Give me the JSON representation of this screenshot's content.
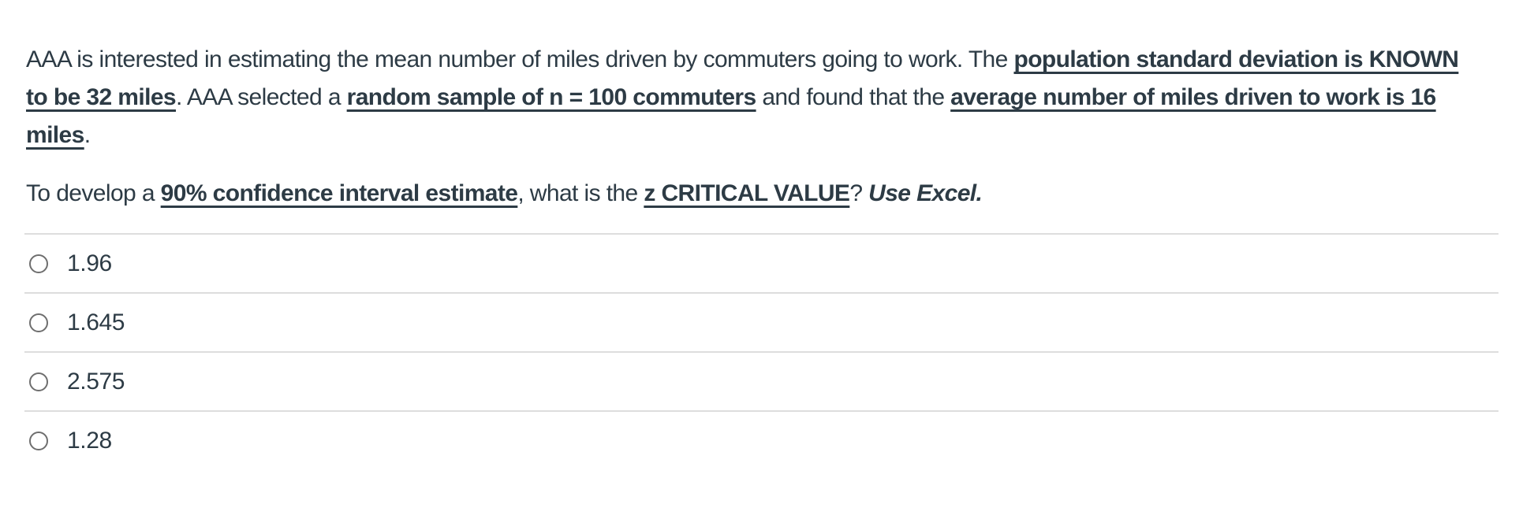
{
  "colors": {
    "text": "#2D3B45",
    "divider": "#DDDDDD",
    "radio_border": "#6E6E6E",
    "background": "#FFFFFF"
  },
  "question": {
    "paragraphs": [
      {
        "runs": [
          {
            "text": "AAA is interested in estimating the mean number of miles driven by commuters going to work. The ",
            "style": "normal"
          },
          {
            "text": "population standard deviation is KNOWN to be 32 miles",
            "style": "bold-underline"
          },
          {
            "text": ". AAA selected a ",
            "style": "normal"
          },
          {
            "text": "random sample of n = 100 commuters",
            "style": "bold-underline"
          },
          {
            "text": " and found that the ",
            "style": "normal"
          },
          {
            "text": "average number of miles driven to work is 16 miles",
            "style": "bold-underline"
          },
          {
            "text": ".",
            "style": "normal"
          }
        ]
      },
      {
        "runs": [
          {
            "text": "To develop a ",
            "style": "normal"
          },
          {
            "text": "90% confidence interval estimate",
            "style": "bold-underline"
          },
          {
            "text": ", what is the ",
            "style": "normal"
          },
          {
            "text": "z CRITICAL VALUE",
            "style": "bold-underline"
          },
          {
            "text": "? ",
            "style": "normal"
          },
          {
            "text": "Use Excel.",
            "style": "bold-italic"
          }
        ]
      }
    ]
  },
  "options": [
    {
      "label": "1.96",
      "selected": false
    },
    {
      "label": "1.645",
      "selected": false
    },
    {
      "label": "2.575",
      "selected": false
    },
    {
      "label": "1.28",
      "selected": false
    }
  ]
}
